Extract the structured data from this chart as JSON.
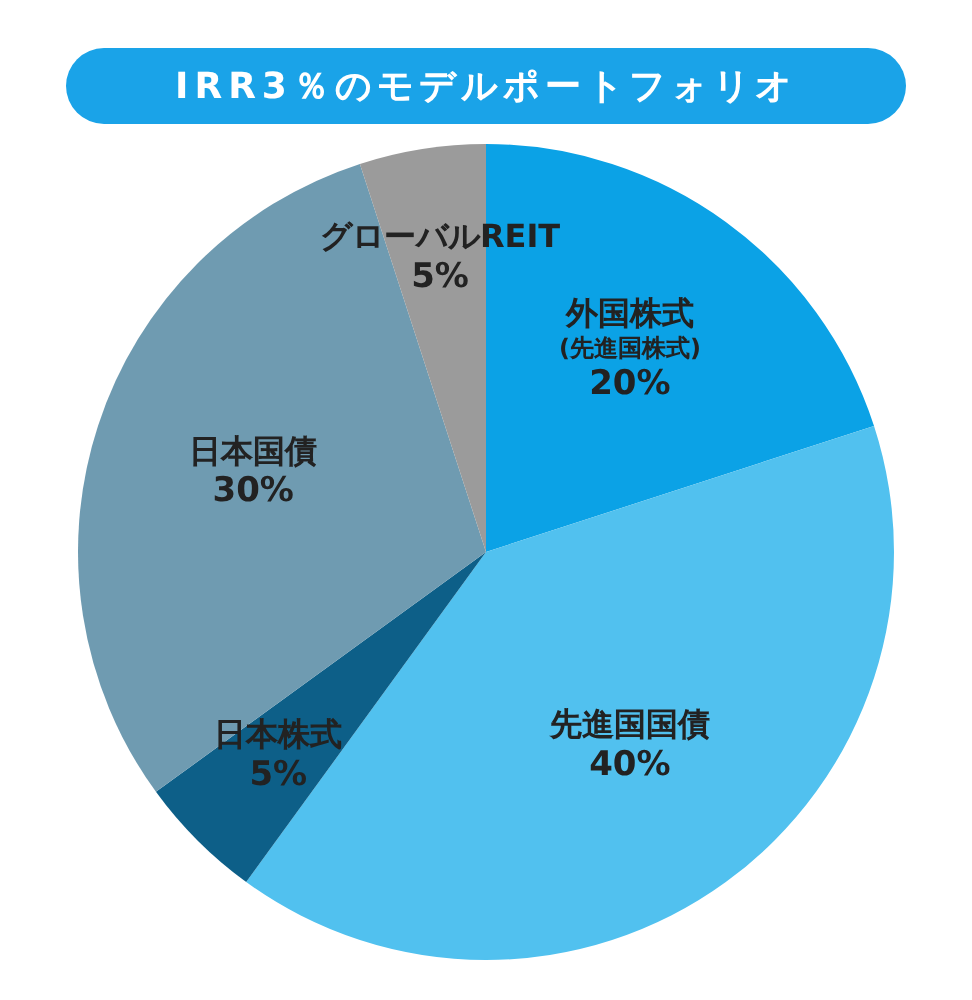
{
  "chart_data": {
    "type": "pie",
    "title": "IRR3％のモデルポートフォリオ",
    "categories": [
      "外国株式\n(先進国株式)",
      "先進国国債",
      "日本株式",
      "日本国債",
      "グローバルREIT"
    ],
    "values": [
      20,
      40,
      5,
      30,
      5
    ],
    "value_labels": [
      "20%",
      "40%",
      "5%",
      "30%",
      "5%"
    ],
    "colors": [
      "#0ba2e6",
      "#51c1ef",
      "#0d5f88",
      "#6f9bb1",
      "#9b9b9b"
    ],
    "legend": false
  }
}
